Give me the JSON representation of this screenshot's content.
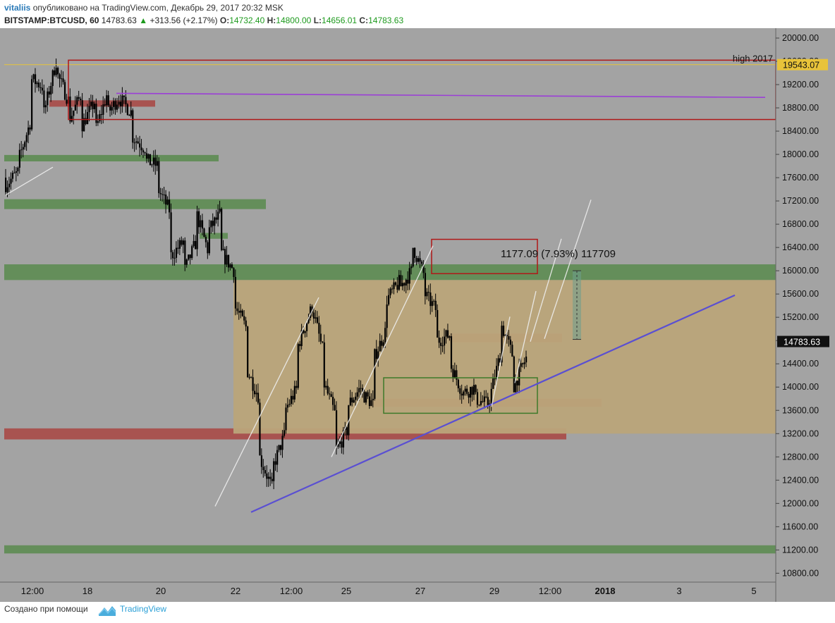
{
  "header": {
    "user": "vitaliis",
    "published": "опубликовано на TradingView.com, Декабрь 29, 2017 20:32 MSK",
    "symbol": "BITSTAMP:BTCUSD, 60",
    "last": "14783.63",
    "change": "+313.56 (+2.17%)",
    "o_label": "O:",
    "o_value": "14732.40",
    "h_label": "H:",
    "h_value": "14800.00",
    "l_label": "L:",
    "l_value": "14656.01",
    "c_label": "C:",
    "c_value": "14783.63"
  },
  "footer": {
    "made_with": "Создано при помощи",
    "brand": "TradingView"
  },
  "colors": {
    "background": "#a3a3a3",
    "candle": "#000000",
    "support_zone": "#5d8c52",
    "resistance_zone": "#a94a47",
    "range_zone": "#bba57a",
    "box_red": "#b01818",
    "box_green": "#3e7a2a",
    "trendline": "#5a4fd2",
    "purple_line": "#9b3fd6",
    "white_line": "#eeeeee",
    "high_line": "#e8c33a"
  },
  "chart_data": {
    "type": "candlestick",
    "title": "",
    "xlabel": "",
    "ylabel": "",
    "symbol": "BITSTAMP:BTCUSD",
    "interval": "60",
    "ylim": [
      10500,
      20300
    ],
    "y_ticks": [
      20000,
      19600,
      19200,
      18800,
      18400,
      18000,
      17600,
      17200,
      16800,
      16400,
      16000,
      15600,
      15200,
      14800,
      14400,
      14000,
      13600,
      13200,
      12800,
      12400,
      12000,
      11600,
      11200,
      10800
    ],
    "y_tick_labels": [
      "20000.00",
      "19600.00",
      "19200.00",
      "18800.00",
      "18400.00",
      "18000.00",
      "17600.00",
      "17200.00",
      "16800.00",
      "16400.00",
      "16000.00",
      "15600.00",
      "15200.00",
      "14800.00",
      "14400.00",
      "14000.00",
      "13600.00",
      "13200.00",
      "12800.00",
      "12400.00",
      "12000.00",
      "11600.00",
      "11200.00",
      "10800.00"
    ],
    "x_ticks": [
      {
        "label": "12:00",
        "bold": false
      },
      {
        "label": "18",
        "bold": false
      },
      {
        "label": "20",
        "bold": false
      },
      {
        "label": "22",
        "bold": false
      },
      {
        "label": "12:00",
        "bold": false
      },
      {
        "label": "25",
        "bold": false
      },
      {
        "label": "27",
        "bold": false
      },
      {
        "label": "29",
        "bold": false
      },
      {
        "label": "12:00",
        "bold": false
      },
      {
        "label": "2018",
        "bold": true
      },
      {
        "label": "3",
        "bold": false
      },
      {
        "label": "5",
        "bold": false
      }
    ],
    "price_path": [
      [
        17600,
        17480
      ],
      [
        17700,
        17900
      ],
      [
        18600,
        19300
      ],
      [
        19150,
        18700
      ],
      [
        19620,
        19400
      ],
      [
        18900,
        18600
      ],
      [
        19050,
        18500
      ],
      [
        18900,
        18350
      ],
      [
        19050,
        18700
      ],
      [
        19000,
        18950
      ],
      [
        18700,
        18300
      ],
      [
        18100,
        17900
      ],
      [
        17800,
        17400
      ],
      [
        17000,
        16250
      ],
      [
        16500,
        15950
      ],
      [
        16500,
        17000
      ],
      [
        16300,
        16700
      ],
      [
        17000,
        16300
      ],
      [
        16000,
        15400
      ],
      [
        15000,
        14300
      ],
      [
        13800,
        12800
      ],
      [
        12250,
        12600
      ],
      [
        13200,
        13600
      ],
      [
        14000,
        14700
      ],
      [
        15300,
        15500
      ],
      [
        14600,
        14100
      ],
      [
        13500,
        12900
      ],
      [
        13300,
        13700
      ],
      [
        14000,
        13900
      ],
      [
        13700,
        14500
      ],
      [
        15000,
        15500
      ],
      [
        15800,
        15700
      ],
      [
        16000,
        16450
      ],
      [
        15900,
        15600
      ],
      [
        15300,
        14800
      ],
      [
        14900,
        14400
      ],
      [
        13900,
        13900
      ],
      [
        14000,
        13800
      ],
      [
        13700,
        13700
      ],
      [
        14600,
        15100
      ],
      [
        14500,
        14000
      ],
      [
        14500,
        14783
      ]
    ],
    "annotations": {
      "high_label": "high 2017",
      "high_price": "19543.07",
      "last_price": "14783.63",
      "measure": "1177.09 (7.93%) 117709"
    },
    "zones": [
      {
        "kind": "support",
        "low": 17880,
        "high": 17990
      },
      {
        "kind": "support",
        "low": 17060,
        "high": 17230
      },
      {
        "kind": "support",
        "low": 16550,
        "high": 16650
      },
      {
        "kind": "support",
        "low": 15840,
        "high": 16110
      },
      {
        "kind": "support",
        "low": 11140,
        "high": 11280
      },
      {
        "kind": "resistance",
        "low": 18820,
        "high": 18930
      },
      {
        "kind": "resistance",
        "low": 14770,
        "high": 14920
      },
      {
        "kind": "resistance",
        "low": 13660,
        "high": 13800
      },
      {
        "kind": "resistance",
        "low": 13100,
        "high": 13290
      },
      {
        "kind": "range",
        "low": 13200,
        "high": 15840
      }
    ]
  }
}
